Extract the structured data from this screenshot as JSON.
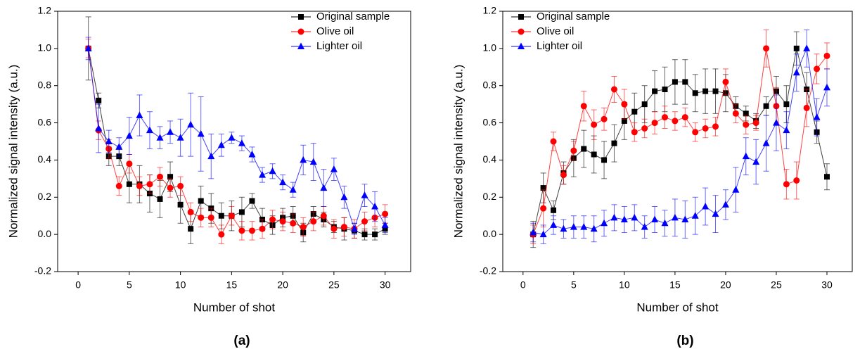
{
  "chart_data": [
    {
      "type": "line",
      "label": "(a)",
      "xlabel": "Number of shot",
      "ylabel": "Normalized signal intensity (a.u.)",
      "xlim": [
        -2,
        32.5
      ],
      "ylim": [
        -0.2,
        1.2
      ],
      "xticks": [
        0,
        5,
        10,
        15,
        20,
        25,
        30
      ],
      "yticks": [
        -0.2,
        {
          "value": 0,
          "label": "0.0"
        },
        0.2,
        0.4,
        0.6,
        0.8,
        {
          "value": 1,
          "label": "1.0"
        },
        1.2
      ],
      "legend": "upper right",
      "x": [
        1,
        2,
        3,
        4,
        5,
        6,
        7,
        8,
        9,
        10,
        11,
        12,
        13,
        14,
        15,
        16,
        17,
        18,
        19,
        20,
        21,
        22,
        23,
        24,
        25,
        26,
        27,
        28,
        29,
        30
      ],
      "series": [
        {
          "name": "Original sample",
          "color": "#000000",
          "marker": "square",
          "values": [
            1.0,
            0.72,
            0.42,
            0.42,
            0.27,
            0.27,
            0.22,
            0.19,
            0.31,
            0.16,
            0.03,
            0.18,
            0.14,
            0.1,
            0.1,
            0.12,
            0.18,
            0.08,
            0.05,
            0.09,
            0.1,
            0.01,
            0.11,
            0.08,
            0.04,
            0.03,
            0.02,
            0.0,
            0.0,
            0.03
          ],
          "errors": [
            0.17,
            0.04,
            0.05,
            0.05,
            0.1,
            0.1,
            0.1,
            0.1,
            0.08,
            0.1,
            0.08,
            0.08,
            0.08,
            0.07,
            0.08,
            0.08,
            0.04,
            0.06,
            0.05,
            0.05,
            0.05,
            0.05,
            0.04,
            0.04,
            0.03,
            0.06,
            0.04,
            0.03,
            0.03,
            0.03
          ]
        },
        {
          "name": "Olive oil",
          "color": "#ff0000",
          "marker": "circle",
          "values": [
            1.0,
            0.56,
            0.46,
            0.26,
            0.38,
            0.26,
            0.27,
            0.31,
            0.25,
            0.26,
            0.12,
            0.09,
            0.09,
            0.0,
            0.1,
            0.02,
            0.02,
            0.03,
            0.08,
            0.07,
            0.06,
            0.04,
            0.07,
            0.1,
            0.03,
            0.04,
            0.03,
            0.07,
            0.09,
            0.11
          ],
          "errors": [
            0.05,
            0.05,
            0.05,
            0.05,
            0.05,
            0.05,
            0.05,
            0.05,
            0.05,
            0.05,
            0.05,
            0.05,
            0.05,
            0.05,
            0.05,
            0.05,
            0.05,
            0.05,
            0.05,
            0.05,
            0.05,
            0.05,
            0.05,
            0.05,
            0.05,
            0.05,
            0.05,
            0.05,
            0.05,
            0.05
          ]
        },
        {
          "name": "Lighter oil",
          "color": "#0000ff",
          "marker": "triangle",
          "values": [
            1.0,
            0.57,
            0.5,
            0.47,
            0.53,
            0.64,
            0.56,
            0.52,
            0.55,
            0.52,
            0.59,
            0.54,
            0.42,
            0.48,
            0.52,
            0.49,
            0.43,
            0.32,
            0.34,
            0.28,
            0.24,
            0.4,
            0.39,
            0.25,
            0.35,
            0.2,
            0.03,
            0.21,
            0.15,
            0.05
          ],
          "errors": [
            0.06,
            0.13,
            0.06,
            0.05,
            0.1,
            0.11,
            0.1,
            0.06,
            0.06,
            0.1,
            0.17,
            0.2,
            0.12,
            0.06,
            0.03,
            0.04,
            0.04,
            0.04,
            0.04,
            0.04,
            0.04,
            0.08,
            0.1,
            0.1,
            0.06,
            0.06,
            0.03,
            0.06,
            0.08,
            0.04
          ]
        }
      ]
    },
    {
      "type": "line",
      "label": "(b)",
      "xlabel": "Number of shot",
      "ylabel": "Normalized signal intensity (a.u.)",
      "xlim": [
        -2,
        32.5
      ],
      "ylim": [
        -0.2,
        1.2
      ],
      "xticks": [
        0,
        5,
        10,
        15,
        20,
        25,
        30
      ],
      "yticks": [
        -0.2,
        {
          "value": 0,
          "label": "0.0"
        },
        0.2,
        0.4,
        0.6,
        0.8,
        {
          "value": 1,
          "label": "1.0"
        },
        1.2
      ],
      "legend": "upper left",
      "x": [
        1,
        2,
        3,
        4,
        5,
        6,
        7,
        8,
        9,
        10,
        11,
        12,
        13,
        14,
        15,
        16,
        17,
        18,
        19,
        20,
        21,
        22,
        23,
        24,
        25,
        26,
        27,
        28,
        29,
        30
      ],
      "series": [
        {
          "name": "Original sample",
          "color": "#000000",
          "marker": "square",
          "values": [
            0.0,
            0.25,
            0.13,
            0.33,
            0.41,
            0.46,
            0.43,
            0.4,
            0.49,
            0.61,
            0.66,
            0.7,
            0.77,
            0.78,
            0.82,
            0.82,
            0.76,
            0.77,
            0.77,
            0.76,
            0.69,
            0.65,
            0.61,
            0.69,
            0.77,
            0.7,
            1.0,
            0.78,
            0.55,
            0.31
          ],
          "errors": [
            0.07,
            0.08,
            0.05,
            0.06,
            0.1,
            0.1,
            0.1,
            0.1,
            0.1,
            0.1,
            0.1,
            0.1,
            0.11,
            0.12,
            0.12,
            0.12,
            0.1,
            0.12,
            0.12,
            0.1,
            0.05,
            0.04,
            0.04,
            0.05,
            0.08,
            0.1,
            0.09,
            0.09,
            0.06,
            0.07
          ]
        },
        {
          "name": "Olive oil",
          "color": "#ff0000",
          "marker": "circle",
          "values": [
            0.0,
            0.14,
            0.5,
            0.32,
            0.45,
            0.69,
            0.59,
            0.62,
            0.78,
            0.7,
            0.55,
            0.57,
            0.6,
            0.63,
            0.61,
            0.63,
            0.55,
            0.57,
            0.58,
            0.82,
            0.65,
            0.59,
            0.6,
            1.0,
            0.69,
            0.27,
            0.29,
            0.68,
            0.89,
            0.96
          ],
          "errors": [
            0.05,
            0.1,
            0.05,
            0.05,
            0.05,
            0.08,
            0.08,
            0.06,
            0.07,
            0.08,
            0.05,
            0.05,
            0.06,
            0.06,
            0.05,
            0.05,
            0.05,
            0.05,
            0.05,
            0.07,
            0.05,
            0.05,
            0.04,
            0.1,
            0.1,
            0.08,
            0.1,
            0.1,
            0.08,
            0.07
          ]
        },
        {
          "name": "Lighter oil",
          "color": "#0000ff",
          "marker": "triangle",
          "values": [
            0.01,
            0.0,
            0.05,
            0.03,
            0.04,
            0.04,
            0.03,
            0.06,
            0.09,
            0.08,
            0.09,
            0.04,
            0.08,
            0.06,
            0.09,
            0.08,
            0.1,
            0.15,
            0.11,
            0.16,
            0.24,
            0.42,
            0.39,
            0.49,
            0.6,
            0.56,
            0.87,
            1.0,
            0.63,
            0.79
          ],
          "errors": [
            0.05,
            0.05,
            0.05,
            0.05,
            0.06,
            0.06,
            0.07,
            0.07,
            0.07,
            0.07,
            0.07,
            0.06,
            0.07,
            0.07,
            0.1,
            0.1,
            0.1,
            0.1,
            0.1,
            0.08,
            0.12,
            0.1,
            0.12,
            0.15,
            0.15,
            0.1,
            0.1,
            0.1,
            0.1,
            0.1
          ]
        }
      ]
    }
  ]
}
